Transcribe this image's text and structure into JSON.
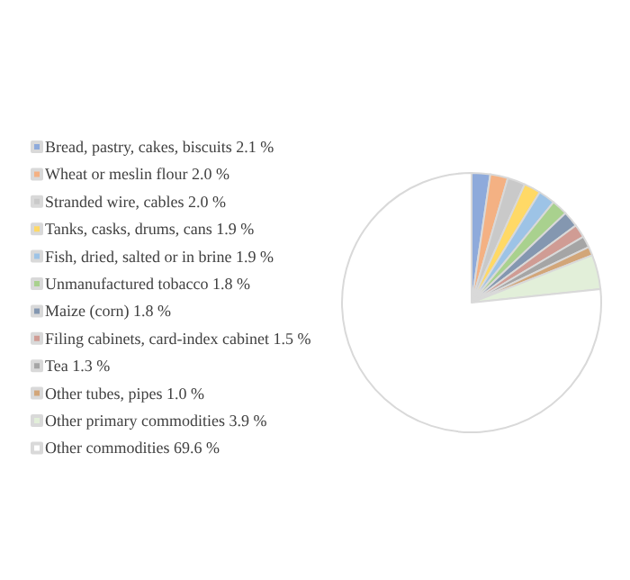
{
  "chart_data": {
    "type": "pie",
    "categories": [
      "Bread, pastry, cakes, biscuits",
      "Wheat or meslin flour",
      "Stranded wire, cables",
      "Tanks, casks, drums, cans",
      "Fish, dried, salted or in brine",
      "Unmanufactured tobacco",
      "Maize (corn)",
      "Filing cabinets, card-index cabinet",
      "Tea",
      "Other tubes, pipes",
      "Other primary commodities",
      "Other commodities"
    ],
    "values": [
      2.1,
      2.0,
      2.0,
      1.9,
      1.9,
      1.8,
      1.8,
      1.5,
      1.3,
      1.0,
      3.9,
      69.6
    ],
    "value_labels": [
      "2.1 %",
      "2.0 %",
      "2.0 %",
      "1.9 %",
      "1.9 %",
      "1.8 %",
      "1.8 %",
      "1.5 %",
      "1.3 %",
      "1.0 %",
      "3.9 %",
      "69.6 %"
    ],
    "colors": [
      "#8eaadb",
      "#f4b183",
      "#c9c9c9",
      "#ffd966",
      "#9dc3e6",
      "#a9d18e",
      "#8497b0",
      "#d09c94",
      "#a5a5a5",
      "#d2a679",
      "#e2efd9",
      "#ffffff"
    ],
    "legend": "left"
  }
}
